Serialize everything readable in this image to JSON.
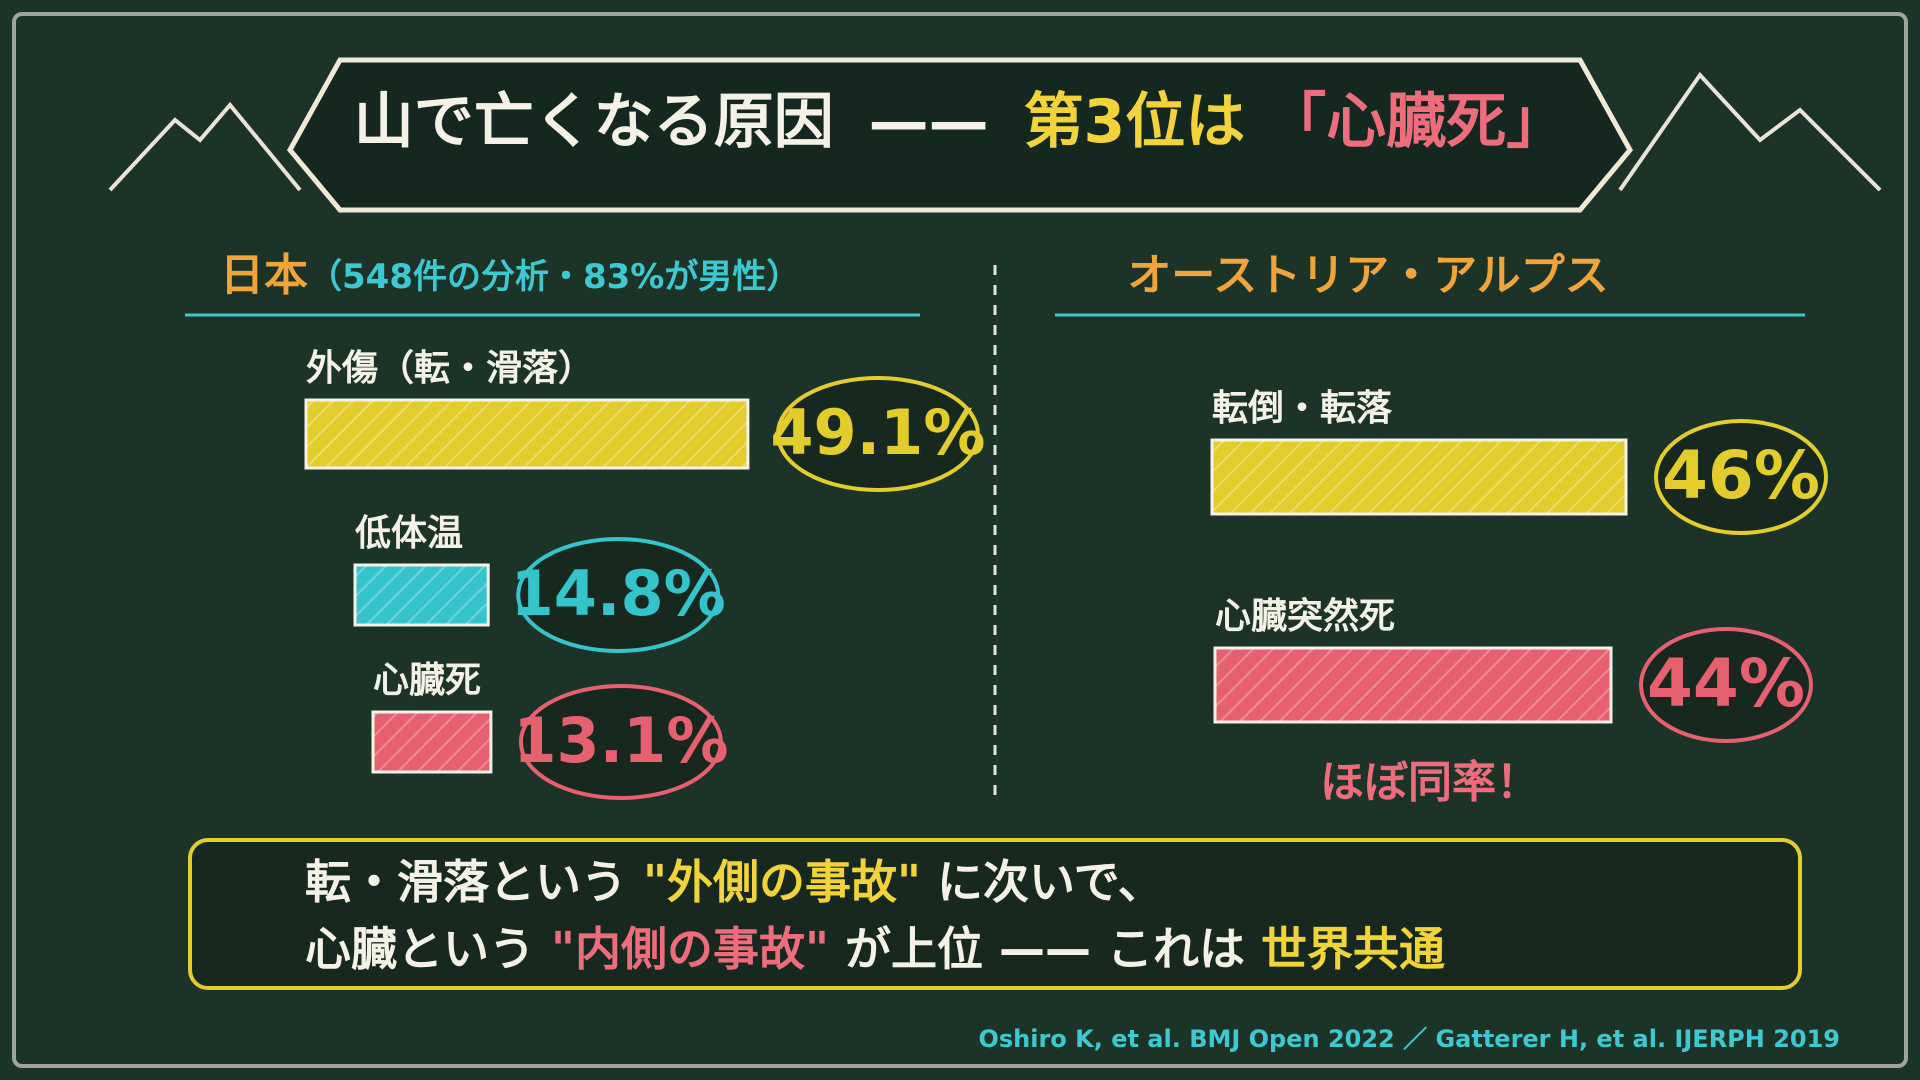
{
  "title": {
    "main": "山で亡くなる原因",
    "dash": "——",
    "rank": "第3位は",
    "cause": "「心臓死」"
  },
  "chart_data": [
    {
      "type": "bar",
      "orientation": "horizontal",
      "title": "日本",
      "subtitle": "（548件の分析・83%が男性）",
      "categories": [
        "外傷（転・滑落）",
        "低体温",
        "心臓死"
      ],
      "values": [
        49.1,
        14.8,
        13.1
      ],
      "value_labels": [
        "49.1%",
        "14.8%",
        "13.1%"
      ],
      "colors": [
        "#e3cd2c",
        "#35c3cc",
        "#e7606f"
      ]
    },
    {
      "type": "bar",
      "orientation": "horizontal",
      "title": "オーストリア・アルプス",
      "categories": [
        "転倒・転落",
        "心臓突然死"
      ],
      "values": [
        46,
        44
      ],
      "value_labels": [
        "46%",
        "44%"
      ],
      "colors": [
        "#e3cd2c",
        "#e7606f"
      ],
      "annotation": "ほぼ同率！"
    }
  ],
  "message": {
    "line1": [
      "転・滑落という",
      "\"外側の事故\"",
      "に次いで、"
    ],
    "line2": [
      "心臓という",
      "\"内側の事故\"",
      "が上位 —— これは",
      "世界共通"
    ]
  },
  "citation": "Oshiro K, et al. BMJ Open 2022 ／ Gatterer H, et al. IJERPH 2019"
}
